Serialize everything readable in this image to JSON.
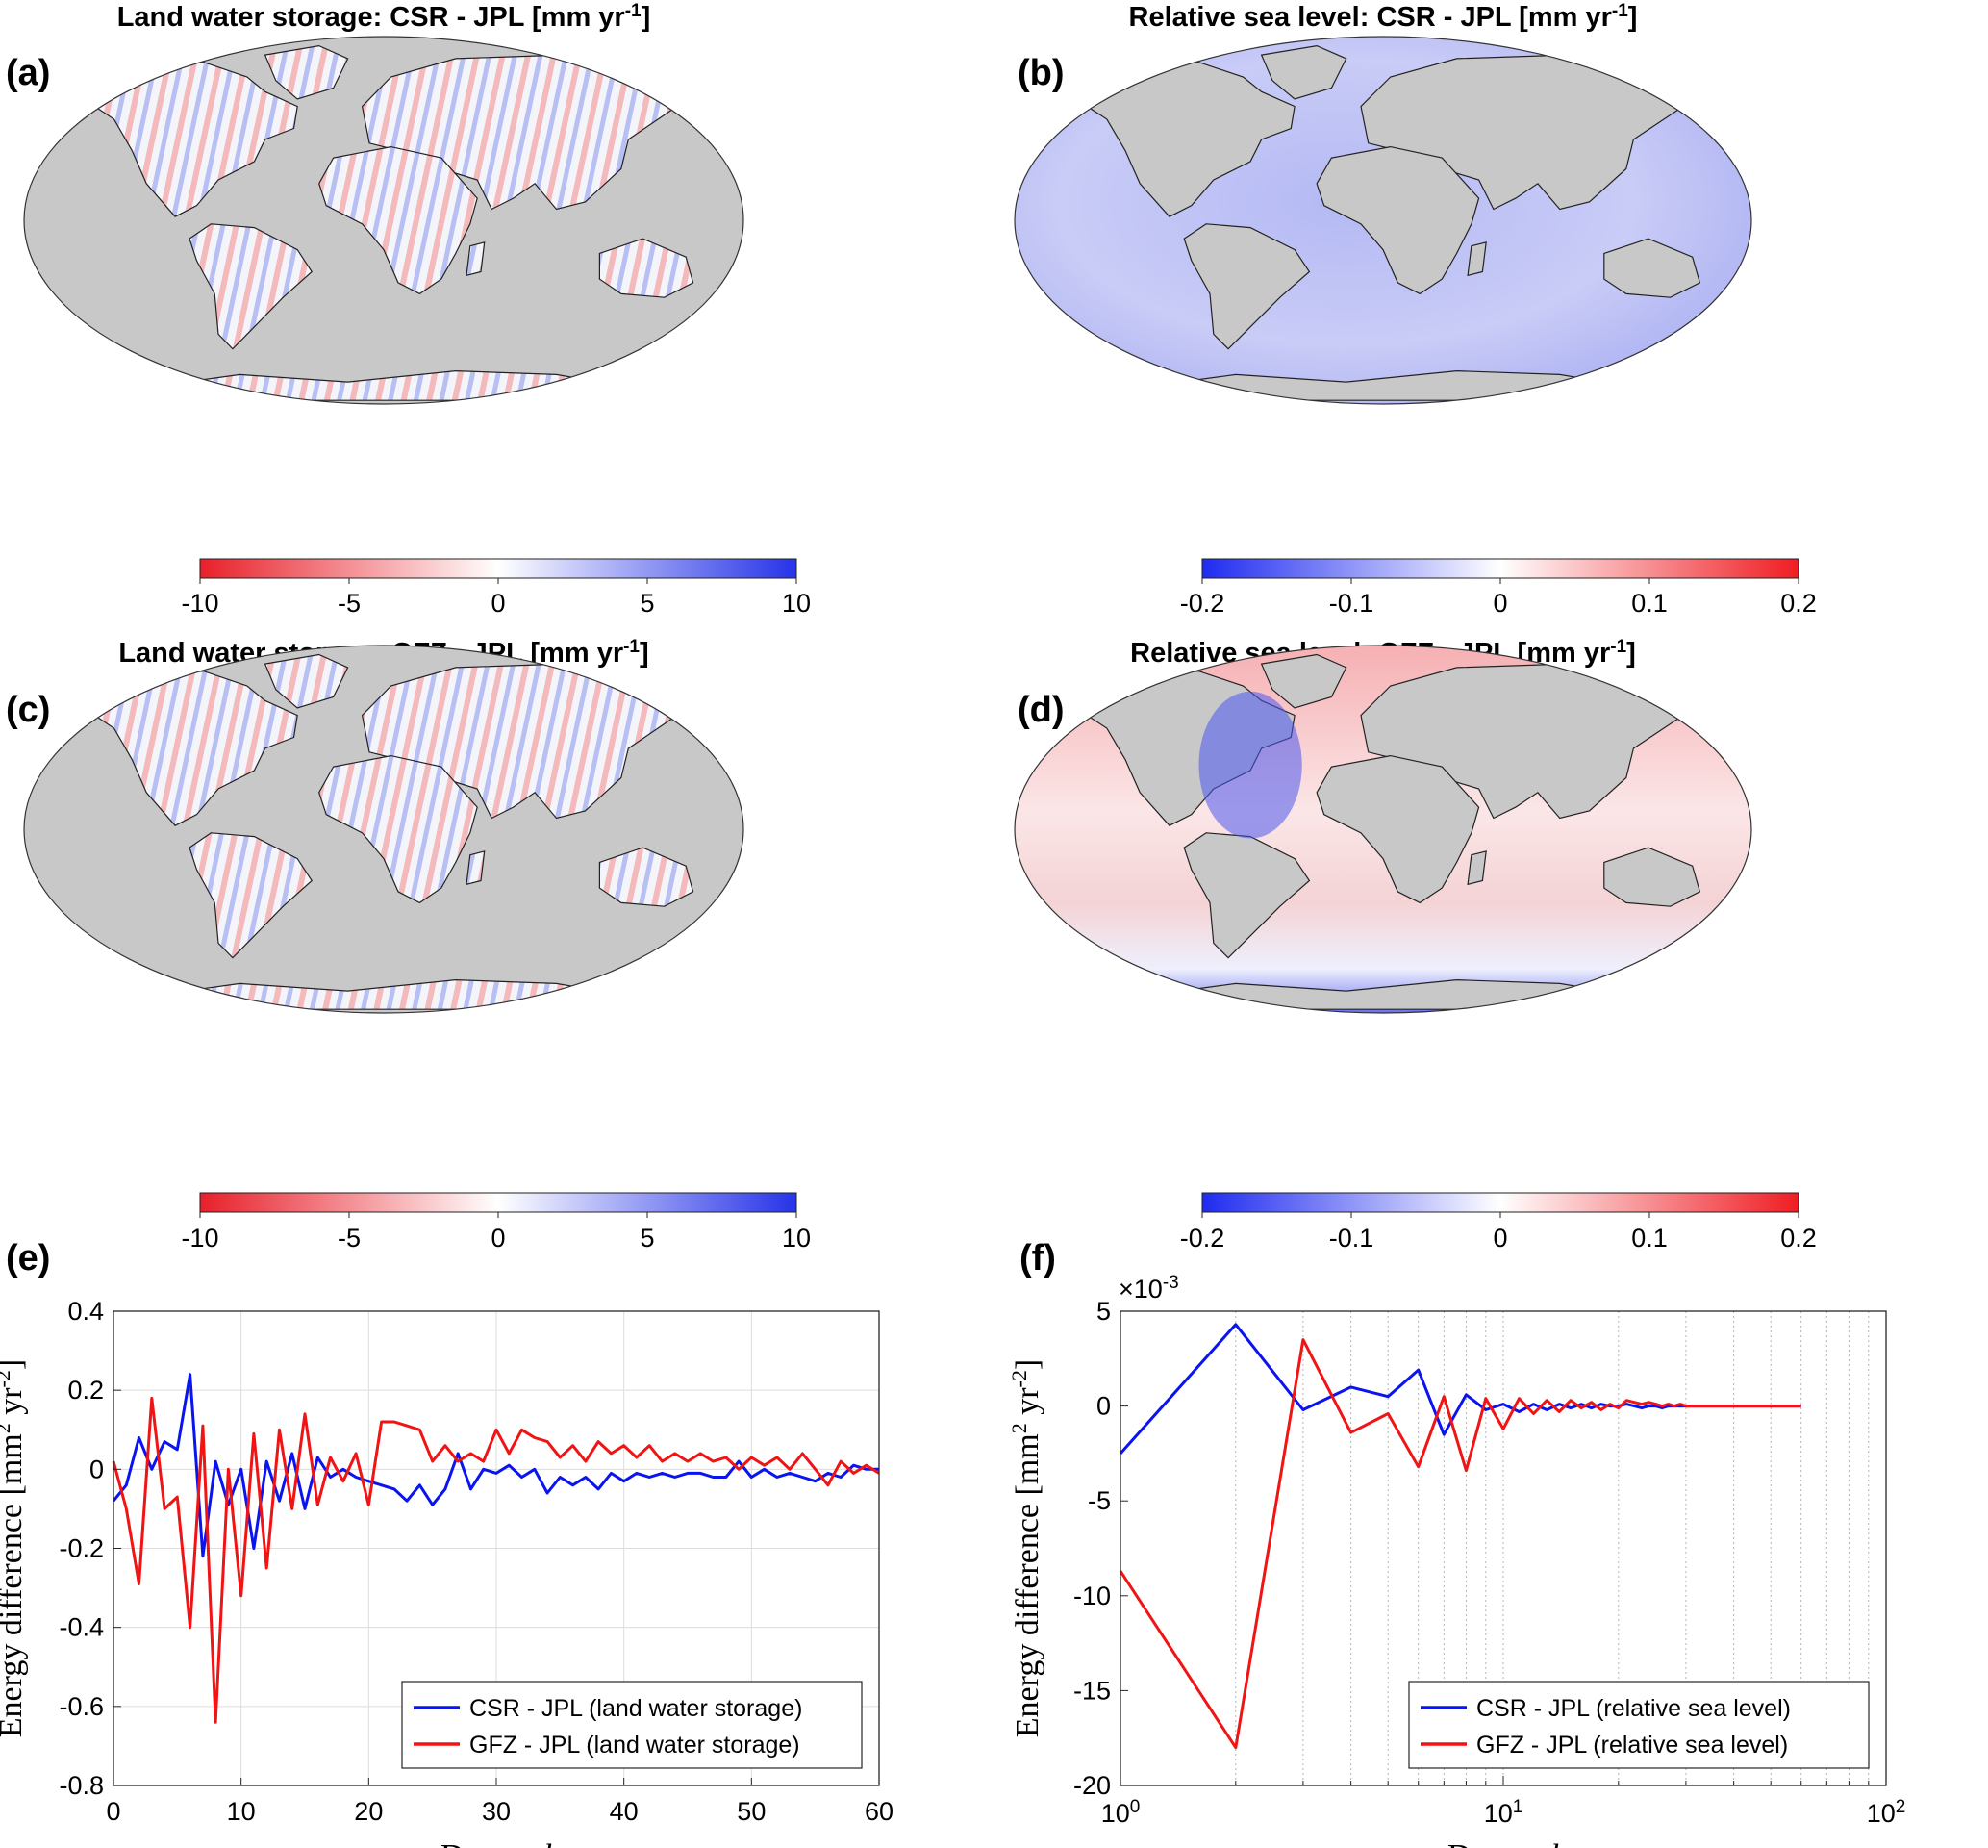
{
  "maps": [
    {
      "panel_label": "(a)",
      "title": "Land water storage: CSR - JPL",
      "unit": "[mm yr",
      "unit_exp": "-1",
      "unit_close": "]",
      "variable": "land water storage",
      "pattern": "land-stripes",
      "colorbar": {
        "ticks": [
          "-10",
          "-5",
          "0",
          "5",
          "10"
        ],
        "range": [
          -10,
          10
        ],
        "colors": [
          "#e8202a",
          "#ffffff",
          "#2633e8"
        ]
      }
    },
    {
      "panel_label": "(b)",
      "title": "Relative sea level: CSR - JPL",
      "unit": "[mm yr",
      "unit_exp": "-1",
      "unit_close": "]",
      "variable": "relative sea level",
      "pattern": "ocean-blue",
      "colorbar": {
        "ticks": [
          "-0.2",
          "-0.1",
          "0",
          "0.1",
          "0.2"
        ],
        "range": [
          -0.2,
          0.2
        ],
        "colors": [
          "#1f2bf0",
          "#ffffff",
          "#ef1d23"
        ]
      }
    },
    {
      "panel_label": "(c)",
      "title": "Land water storage: GFZ - JPL",
      "unit": "[mm yr",
      "unit_exp": "-1",
      "unit_close": "]",
      "variable": "land water storage",
      "pattern": "land-stripes",
      "colorbar": {
        "ticks": [
          "-10",
          "-5",
          "0",
          "5",
          "10"
        ],
        "range": [
          -10,
          10
        ],
        "colors": [
          "#e8202a",
          "#ffffff",
          "#2633e8"
        ]
      }
    },
    {
      "panel_label": "(d)",
      "title": "Relative sea level: GFZ - JPL",
      "unit": "[mm yr",
      "unit_exp": "-1",
      "unit_close": "]",
      "variable": "relative sea level",
      "pattern": "ocean-mixed",
      "colorbar": {
        "ticks": [
          "-0.2",
          "-0.1",
          "0",
          "0.1",
          "0.2"
        ],
        "range": [
          -0.2,
          0.2
        ],
        "colors": [
          "#1f2bf0",
          "#ffffff",
          "#ef1d23"
        ]
      }
    }
  ],
  "land_color": "#c8c8c8",
  "chart_data": [
    {
      "panel_label": "(e)",
      "type": "line",
      "xlabel": "Degree",
      "xlabel_var": "l",
      "ylabel": "Energy difference [mm",
      "ylabel_exp1": "2",
      "ylabel_mid": " yr",
      "ylabel_exp2": "-2",
      "ylabel_close": "]",
      "xlim": [
        0,
        60
      ],
      "ylim": [
        -0.8,
        0.4
      ],
      "xticks": [
        0,
        10,
        20,
        30,
        40,
        50,
        60
      ],
      "yticks": [
        -0.8,
        -0.6,
        -0.4,
        -0.2,
        0,
        0.2,
        0.4
      ],
      "xtick_labels": [
        "0",
        "10",
        "20",
        "30",
        "40",
        "50",
        "60"
      ],
      "ytick_labels": [
        "-0.8",
        "-0.6",
        "-0.4",
        "-0.2",
        "0",
        "0.2",
        "0.4"
      ],
      "grid": true,
      "legend_position": "bottom-right",
      "series": [
        {
          "name": "CSR - JPL (land water storage)",
          "color": "#0a14f0",
          "x": [
            0,
            1,
            2,
            3,
            4,
            5,
            6,
            7,
            8,
            9,
            10,
            11,
            12,
            13,
            14,
            15,
            16,
            17,
            18,
            19,
            20,
            21,
            22,
            23,
            24,
            25,
            26,
            27,
            28,
            29,
            30,
            31,
            32,
            33,
            34,
            35,
            36,
            37,
            38,
            39,
            40,
            41,
            42,
            43,
            44,
            45,
            46,
            47,
            48,
            49,
            50,
            51,
            52,
            53,
            54,
            55,
            56,
            57,
            58,
            59,
            60
          ],
          "y": [
            -0.08,
            -0.04,
            0.08,
            0.0,
            0.07,
            0.05,
            0.24,
            -0.22,
            0.02,
            -0.09,
            0.0,
            -0.2,
            0.02,
            -0.08,
            0.04,
            -0.1,
            0.03,
            -0.02,
            0.0,
            -0.02,
            -0.03,
            -0.04,
            -0.05,
            -0.08,
            -0.04,
            -0.09,
            -0.05,
            0.04,
            -0.05,
            0.0,
            -0.01,
            0.01,
            -0.02,
            0.0,
            -0.06,
            -0.02,
            -0.04,
            -0.02,
            -0.05,
            -0.01,
            -0.03,
            -0.01,
            -0.02,
            -0.01,
            -0.02,
            -0.01,
            -0.01,
            -0.02,
            -0.02,
            0.02,
            -0.02,
            0.0,
            -0.02,
            -0.01,
            -0.02,
            -0.03,
            -0.01,
            -0.02,
            0.01,
            0.0,
            0.0
          ]
        },
        {
          "name": "GFZ - JPL (land water storage)",
          "color": "#f01414",
          "x": [
            0,
            1,
            2,
            3,
            4,
            5,
            6,
            7,
            8,
            9,
            10,
            11,
            12,
            13,
            14,
            15,
            16,
            17,
            18,
            19,
            20,
            21,
            22,
            23,
            24,
            25,
            26,
            27,
            28,
            29,
            30,
            31,
            32,
            33,
            34,
            35,
            36,
            37,
            38,
            39,
            40,
            41,
            42,
            43,
            44,
            45,
            46,
            47,
            48,
            49,
            50,
            51,
            52,
            53,
            54,
            55,
            56,
            57,
            58,
            59,
            60
          ],
          "y": [
            0.02,
            -0.1,
            -0.29,
            0.18,
            -0.1,
            -0.07,
            -0.4,
            0.11,
            -0.64,
            0.0,
            -0.32,
            0.09,
            -0.25,
            0.1,
            -0.1,
            0.14,
            -0.09,
            0.03,
            -0.03,
            0.04,
            -0.09,
            0.12,
            0.12,
            0.11,
            0.1,
            0.02,
            0.06,
            0.02,
            0.04,
            0.02,
            0.1,
            0.04,
            0.1,
            0.08,
            0.07,
            0.03,
            0.06,
            0.02,
            0.07,
            0.04,
            0.06,
            0.03,
            0.06,
            0.02,
            0.04,
            0.02,
            0.04,
            0.02,
            0.03,
            0.0,
            0.03,
            0.01,
            0.03,
            0.0,
            0.04,
            0.0,
            -0.04,
            0.02,
            -0.01,
            0.01,
            -0.01
          ]
        }
      ]
    },
    {
      "panel_label": "(f)",
      "type": "line",
      "xscale": "log",
      "xlabel": "Degree",
      "xlabel_var": "l",
      "ylabel": "Energy difference [mm",
      "ylabel_exp1": "2",
      "ylabel_mid": " yr",
      "ylabel_exp2": "-2",
      "ylabel_close": "]",
      "y_multiplier_base": "×10",
      "y_multiplier_exp": "-3",
      "xlim": [
        1,
        100
      ],
      "ylim": [
        -20,
        5
      ],
      "xticks": [
        1,
        10,
        100
      ],
      "xtick_base": "10",
      "xtick_exps": [
        "0",
        "1",
        "2"
      ],
      "yticks": [
        -20,
        -15,
        -10,
        -5,
        0,
        5
      ],
      "ytick_labels": [
        "-20",
        "-15",
        "-10",
        "-5",
        "0",
        "5"
      ],
      "grid": "x-minor-dotted",
      "legend_position": "bottom-right",
      "series": [
        {
          "name": "CSR - JPL (relative sea level)",
          "color": "#0a14f0",
          "x": [
            1,
            2,
            3,
            4,
            5,
            6,
            7,
            8,
            9,
            10,
            11,
            12,
            13,
            14,
            15,
            16,
            17,
            18,
            19,
            20,
            21,
            22,
            23,
            24,
            25,
            26,
            27,
            28,
            29,
            30,
            35,
            40,
            45,
            50,
            55,
            60
          ],
          "y": [
            -2.5,
            4.3,
            -0.2,
            1.0,
            0.5,
            1.9,
            -1.5,
            0.6,
            -0.2,
            0.1,
            -0.3,
            0.1,
            -0.2,
            0.1,
            -0.1,
            0.1,
            -0.1,
            0.1,
            0.0,
            0.0,
            0.1,
            0.0,
            -0.1,
            0.0,
            0.0,
            -0.1,
            0.0,
            0.0,
            0.0,
            0.0,
            0.0,
            0.0,
            0.0,
            0.0,
            0.0,
            0.0
          ]
        },
        {
          "name": "GFZ - JPL (relative sea level)",
          "color": "#f01414",
          "x": [
            1,
            2,
            3,
            4,
            5,
            6,
            7,
            8,
            9,
            10,
            11,
            12,
            13,
            14,
            15,
            16,
            17,
            18,
            19,
            20,
            21,
            22,
            23,
            24,
            25,
            26,
            27,
            28,
            29,
            30,
            35,
            40,
            45,
            50,
            55,
            60
          ],
          "y": [
            -8.7,
            -18.0,
            3.5,
            -1.4,
            -0.4,
            -3.2,
            0.5,
            -3.4,
            0.4,
            -1.2,
            0.4,
            -0.4,
            0.3,
            -0.3,
            0.3,
            -0.1,
            0.2,
            -0.2,
            0.1,
            -0.1,
            0.3,
            0.2,
            0.1,
            0.2,
            0.1,
            0.0,
            0.1,
            0.0,
            0.1,
            0.0,
            0.0,
            0.0,
            0.0,
            0.0,
            0.0,
            0.0
          ]
        }
      ]
    }
  ]
}
